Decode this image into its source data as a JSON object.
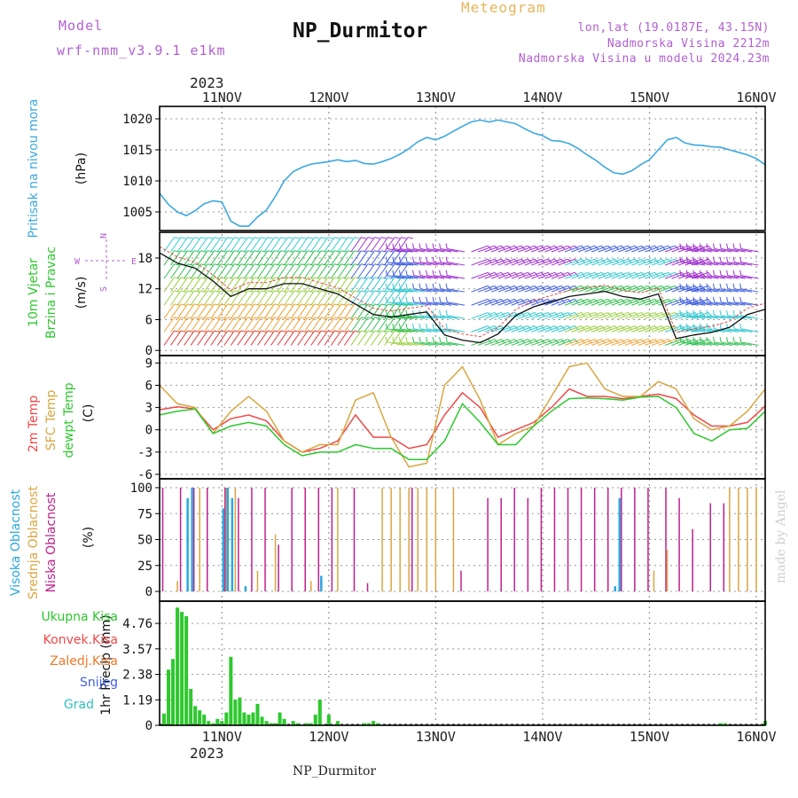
{
  "header": {
    "model_label": "Model",
    "model_name": "wrf-nmm_v3.9.1 e1km",
    "station": "NP_Durmitor",
    "title": "Meteogram",
    "coords": "lon,lat (19.0187E, 43.15N)",
    "altitude": "Nadmorska Visina 2212m",
    "model_altitude": "Nadmorska Visina u modelu 2024.23m"
  },
  "footer": {
    "station": "NP_Durmitor",
    "signature": "made by Angel"
  },
  "time_axis": {
    "year": "2023",
    "day_labels": [
      "11NOV",
      "12NOV",
      "13NOV",
      "14NOV",
      "15NOV",
      "16NOV"
    ],
    "start_hour": -14,
    "end_hour": 122
  },
  "panels": {
    "pressure": {
      "label": "Pritisak na nivou mora",
      "unit": "(hPa)",
      "ticks": [
        "1005",
        "1010",
        "1015",
        "1020"
      ],
      "color": "#3aa8e0"
    },
    "wind": {
      "label1": "10m Vjetar",
      "label2": "Brzina i Pravac",
      "unit": "(m/s)",
      "ticks": [
        "0",
        "6",
        "12",
        "18"
      ],
      "compass": {
        "n": "N",
        "s": "S",
        "w": "W",
        "e": "E"
      }
    },
    "temperature": {
      "label_2m": "2m Temp",
      "label_sfc": "SFC Temp",
      "label_dewpt": "dewpt Temp",
      "unit": "(C)",
      "ticks": [
        "-6",
        "-3",
        "0",
        "3",
        "6",
        "9"
      ],
      "colors": {
        "t2m": "#f04848",
        "sfc": "#d9a640",
        "dewpt": "#2ec82e"
      }
    },
    "cloud": {
      "label_high": "Visoka Oblacnost",
      "label_mid": "Srednja Oblacnost",
      "label_low": "Niska Oblacnost",
      "unit": "(%)",
      "ticks": [
        "0",
        "25",
        "50",
        "75",
        "100"
      ],
      "colors": {
        "high": "#2aa8e0",
        "mid": "#d9a640",
        "low": "#c0208c"
      }
    },
    "precip": {
      "legend": [
        "Ukupna Kisa",
        "Konvek.Kisa",
        "Zaledj.Kisa",
        "Snijeg",
        "Grad"
      ],
      "legend_colors": [
        "#2ec82e",
        "#f04848",
        "#f07828",
        "#4060e0",
        "#30c0c0"
      ],
      "unit": "1hr Precip (mm)",
      "ticks": [
        "0",
        "1.19",
        "2.38",
        "3.57",
        "4.76"
      ]
    }
  },
  "chart_data": [
    {
      "type": "line",
      "title": "Pritisak na nivou mora",
      "ylabel": "(hPa)",
      "ylim": [
        1002,
        1022
      ],
      "x_hours": [
        -14,
        -12,
        -10,
        -8,
        -6,
        -4,
        -2,
        0,
        2,
        4,
        6,
        8,
        10,
        12,
        14,
        16,
        18,
        20,
        22,
        24,
        26,
        28,
        30,
        32,
        34,
        36,
        38,
        40,
        42,
        44,
        46,
        48,
        50,
        52,
        54,
        56,
        58,
        60,
        62,
        64,
        66,
        68,
        70,
        72,
        74,
        76,
        78,
        80,
        82,
        84,
        86,
        88,
        90,
        92,
        94,
        96,
        98,
        100,
        102,
        104,
        106,
        108,
        110,
        112,
        114,
        116,
        118,
        120,
        122
      ],
      "series": [
        {
          "values": [
            1008,
            1006.2,
            1005,
            1004.4,
            1005.2,
            1006.3,
            1006.8,
            1006.6,
            1003.5,
            1002.7,
            1002.7,
            1004.2,
            1005.3,
            1007.5,
            1010,
            1011.5,
            1012.2,
            1012.7,
            1012.9,
            1013.1,
            1013.4,
            1013.1,
            1013.3,
            1012.8,
            1012.7,
            1013.1,
            1013.6,
            1014.3,
            1015.2,
            1016.3,
            1017,
            1016.6,
            1017.2,
            1018,
            1018.8,
            1019.5,
            1019.8,
            1019.5,
            1019.8,
            1019.5,
            1019.2,
            1018.4,
            1017.7,
            1017.3,
            1016.5,
            1016.4,
            1016,
            1015.2,
            1014.2,
            1013.3,
            1012.2,
            1011.3,
            1011.1,
            1011.6,
            1012.6,
            1013.4,
            1015,
            1016.6,
            1017,
            1016.1,
            1015.8,
            1015.7,
            1015.5,
            1015.4,
            1015,
            1014.6,
            1014.2,
            1013.6,
            1012.6
          ]
        }
      ]
    },
    {
      "type": "line",
      "title": "10m Vjetar Brzina i Pravac",
      "ylabel": "(m/s)",
      "ylim": [
        -1,
        23
      ],
      "x_hours": [
        -14,
        -10,
        -6,
        -2,
        2,
        6,
        10,
        14,
        18,
        22,
        26,
        30,
        34,
        38,
        42,
        46,
        50,
        54,
        58,
        62,
        66,
        70,
        74,
        78,
        82,
        86,
        90,
        94,
        98,
        102,
        106,
        110,
        114,
        118,
        122
      ],
      "series": [
        {
          "name": "speed",
          "values": [
            19,
            17,
            16,
            13.5,
            10.5,
            12,
            12,
            13,
            13,
            12,
            11,
            9,
            7,
            6.5,
            7,
            7.5,
            3,
            2,
            1.5,
            3.2,
            6.8,
            8.5,
            9.5,
            10.5,
            11,
            11.5,
            10.5,
            10,
            11,
            2.3,
            3,
            3.5,
            4.5,
            7,
            8
          ]
        }
      ]
    },
    {
      "type": "line",
      "title": "Temperature",
      "ylabel": "(C)",
      "ylim": [
        -6.6,
        10
      ],
      "x_hours": [
        -14,
        -10,
        -6,
        -2,
        2,
        6,
        10,
        14,
        18,
        22,
        26,
        30,
        34,
        38,
        42,
        46,
        50,
        54,
        58,
        62,
        66,
        70,
        74,
        78,
        82,
        86,
        90,
        94,
        98,
        102,
        106,
        110,
        114,
        118,
        122
      ],
      "series": [
        {
          "name": "2m Temp",
          "values": [
            2.7,
            3.1,
            2.8,
            0,
            1.5,
            2,
            1.2,
            -1.5,
            -3,
            -2.5,
            -1.5,
            2,
            -1,
            -1,
            -2.5,
            -2,
            2,
            5,
            3,
            -1,
            0,
            1,
            3,
            5.5,
            4.5,
            4.5,
            4.2,
            4.5,
            4.8,
            4.2,
            2,
            0.5,
            0.5,
            1,
            3.2
          ]
        },
        {
          "name": "SFC Temp",
          "values": [
            6,
            3.5,
            3,
            -0.5,
            2.5,
            4.5,
            2.5,
            -1.5,
            -3,
            -2,
            -2,
            4,
            5,
            -1,
            -5,
            -4.5,
            6,
            8.5,
            4,
            -2,
            -0.5,
            0.5,
            4.5,
            8.5,
            9,
            5.5,
            4.5,
            4.5,
            6.5,
            5.5,
            1.5,
            0,
            0.5,
            2.5,
            5.5
          ]
        },
        {
          "name": "dewpt Temp",
          "values": [
            2,
            2.5,
            2.8,
            -0.5,
            0.5,
            1,
            0.5,
            -2,
            -3.5,
            -3,
            -3,
            -2,
            -2.5,
            -2.5,
            -4,
            -4,
            -1.5,
            3.5,
            1,
            -2,
            -2,
            0.5,
            2.5,
            4.2,
            4.3,
            4.2,
            4,
            4.4,
            4.5,
            3,
            -0.5,
            -1.5,
            0,
            0.2,
            2.5
          ]
        }
      ]
    },
    {
      "type": "bar",
      "title": "Oblacnost",
      "ylabel": "(%)",
      "ylim": [
        0,
        100
      ],
      "series": [
        {
          "name": "Niska Oblacnost",
          "x_hours": [
            -13,
            -9,
            -6,
            -3,
            1,
            4,
            7,
            10,
            13,
            16,
            19,
            22,
            25,
            30,
            33,
            43,
            54,
            60,
            63,
            66,
            69,
            72,
            75,
            78,
            81,
            84,
            87,
            90,
            93,
            96,
            100,
            103,
            106,
            110,
            113
          ],
          "values": [
            100,
            100,
            100,
            100,
            100,
            90,
            100,
            100,
            45,
            100,
            100,
            100,
            100,
            100,
            8,
            100,
            20,
            90,
            90,
            100,
            90,
            100,
            100,
            100,
            100,
            100,
            100,
            100,
            100,
            100,
            100,
            90,
            60,
            85,
            85
          ]
        },
        {
          "name": "Srednja Oblacnost",
          "x_hours": [
            -10,
            -5,
            1,
            3,
            8,
            12,
            20,
            26,
            36,
            38,
            40,
            42,
            44,
            46,
            48,
            52,
            97,
            100,
            114,
            116,
            118,
            120
          ],
          "values": [
            10,
            100,
            100,
            100,
            20,
            55,
            10,
            100,
            100,
            100,
            100,
            100,
            100,
            100,
            100,
            100,
            20,
            40,
            100,
            100,
            100,
            100
          ]
        },
        {
          "name": "Visoka Oblacnost",
          "x_hours": [
            -8,
            -7,
            0,
            1,
            2,
            5,
            22,
            88,
            89
          ],
          "values": [
            90,
            100,
            80,
            100,
            90,
            5,
            15,
            5,
            90
          ]
        }
      ]
    },
    {
      "type": "bar",
      "title": "1hr Precip",
      "ylabel": "1hr Precip (mm)",
      "ylim": [
        0,
        5.8
      ],
      "series": [
        {
          "name": "Ukupna Kisa",
          "x_hours": [
            -13,
            -12,
            -11,
            -10,
            -9,
            -8,
            -7,
            -6,
            -5,
            -4,
            -3,
            -2,
            -1,
            0,
            1,
            2,
            3,
            4,
            5,
            6,
            7,
            8,
            9,
            10,
            11,
            12,
            13,
            14,
            16,
            17,
            19,
            20,
            21,
            22,
            24,
            26,
            32,
            33,
            34,
            35,
            112,
            113,
            122
          ],
          "values": [
            0.55,
            2.6,
            3.1,
            5.5,
            5.3,
            5.1,
            1.7,
            0.9,
            0.7,
            0.5,
            0.2,
            0.1,
            0.3,
            0.2,
            0.6,
            3.2,
            1.2,
            1.3,
            0.6,
            0.5,
            0.6,
            1.0,
            0.4,
            0.2,
            0.1,
            0.1,
            0.6,
            0.3,
            0.2,
            0.1,
            0.1,
            0.1,
            0.5,
            1.2,
            0.5,
            0.2,
            0.1,
            0.1,
            0.2,
            0.1,
            0.1,
            0.1,
            0.2
          ]
        }
      ]
    }
  ]
}
